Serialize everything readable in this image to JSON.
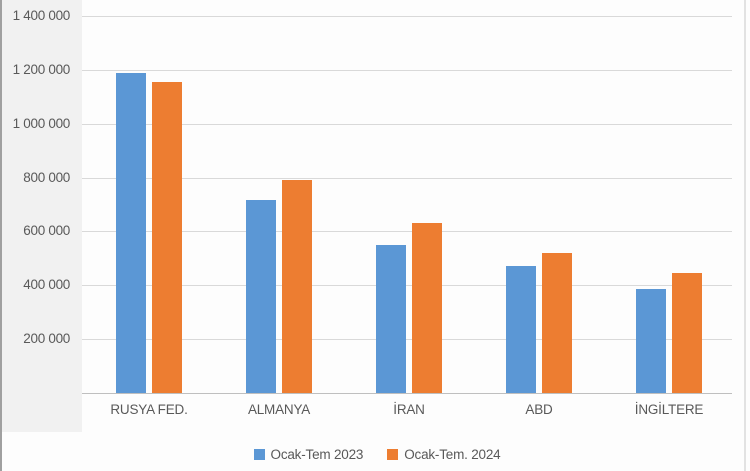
{
  "chart_data": {
    "type": "bar",
    "title": "",
    "xlabel": "",
    "ylabel": "",
    "categories": [
      "RUSYA FED.",
      "ALMANYA",
      "İRAN",
      "ABD",
      "İNGİLTERE"
    ],
    "series": [
      {
        "name": "Ocak-Tem 2023",
        "color": "#5b97d5",
        "values": [
          1190000,
          715000,
          550000,
          470000,
          385000
        ]
      },
      {
        "name": "Ocak-Tem. 2024",
        "color": "#ed7d31",
        "values": [
          1155000,
          790000,
          630000,
          520000,
          445000
        ]
      }
    ],
    "ylim": [
      0,
      1400000
    ],
    "yticks": [
      {
        "value": 200000,
        "label": "200 000"
      },
      {
        "value": 400000,
        "label": "400 000"
      },
      {
        "value": 600000,
        "label": "600 000"
      },
      {
        "value": 800000,
        "label": "800 000"
      },
      {
        "value": 1000000,
        "label": "1 000 000"
      },
      {
        "value": 1200000,
        "label": "1 200 000"
      },
      {
        "value": 1400000,
        "label": "1 400 000"
      }
    ],
    "grid": true,
    "legend_position": "bottom",
    "colors": {
      "gridline": "#d9d9d9",
      "axis": "#bfbfbf",
      "text": "#595959"
    }
  }
}
